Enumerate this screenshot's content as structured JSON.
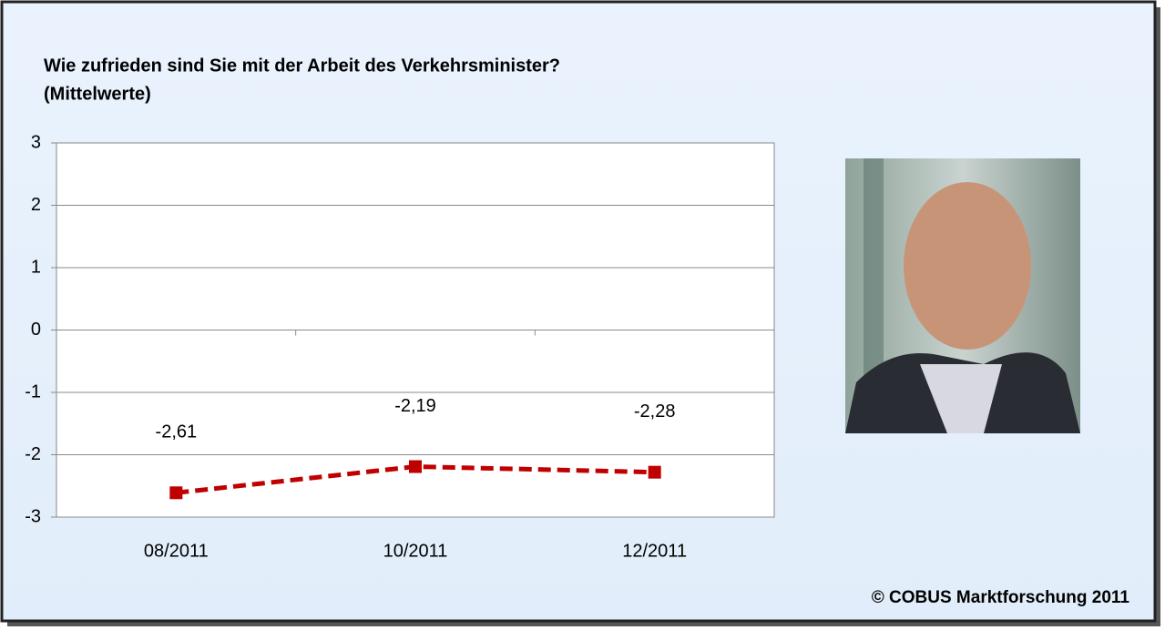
{
  "chart_data": {
    "type": "line",
    "title": "Wie zufrieden sind Sie mit der Arbeit des Verkehrsminister?",
    "subtitle": "(Mittelwerte)",
    "categories": [
      "08/2011",
      "10/2011",
      "12/2011"
    ],
    "values": [
      -2.61,
      -2.19,
      -2.28
    ],
    "value_labels": [
      "-2,61",
      "-2,19",
      "-2,28"
    ],
    "color": "#c00000",
    "ylim": [
      -3,
      3
    ],
    "yticks": [
      -3,
      -2,
      -1,
      0,
      1,
      2,
      3
    ],
    "grid": true,
    "annotation": "© COBUS Marktforschung 2011"
  }
}
